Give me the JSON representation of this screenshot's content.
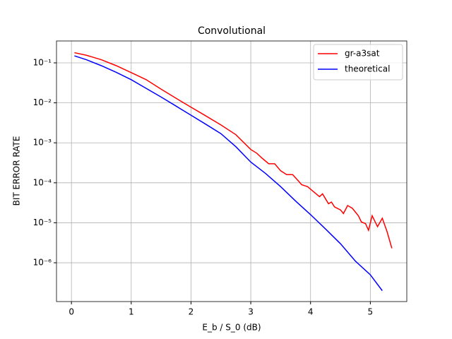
{
  "chart_data": {
    "type": "line",
    "title": "Convolutional",
    "x_label": "E_b / S_0 (dB)",
    "y_label": "BIT ERROR RATE",
    "yscale": "log",
    "grid": true,
    "legend": "upper right",
    "xlim": [
      -0.25,
      5.61
    ],
    "xticks": [
      0,
      1,
      2,
      3,
      4,
      5
    ],
    "ylim": [
      1.07e-07,
      0.353
    ],
    "yticks": [
      {
        "value": 1e-06,
        "label": "10⁻⁶"
      },
      {
        "value": 1e-05,
        "label": "10⁻⁵"
      },
      {
        "value": 0.0001,
        "label": "10⁻⁴"
      },
      {
        "value": 0.001,
        "label": "10⁻³"
      },
      {
        "value": 0.01,
        "label": "10⁻²"
      },
      {
        "value": 0.1,
        "label": "10⁻¹"
      }
    ],
    "series": [
      {
        "name": "gr-a3sat",
        "color": "#ff0000",
        "x": [
          0.05,
          0.25,
          0.5,
          0.75,
          1.0,
          1.25,
          1.5,
          1.75,
          2.0,
          2.25,
          2.5,
          2.75,
          3.0,
          3.1,
          3.2,
          3.3,
          3.4,
          3.5,
          3.6,
          3.7,
          3.8,
          3.85,
          3.95,
          4.05,
          4.15,
          4.2,
          4.3,
          4.35,
          4.4,
          4.5,
          4.55,
          4.62,
          4.7,
          4.8,
          4.85,
          4.92,
          4.97,
          5.03,
          5.12,
          5.2,
          5.28,
          5.36
        ],
        "values": [
          0.18,
          0.155,
          0.12,
          0.085,
          0.057,
          0.038,
          0.022,
          0.013,
          0.0078,
          0.0047,
          0.0028,
          0.0016,
          0.00068,
          0.00055,
          0.0004,
          0.0003,
          0.0003,
          0.0002,
          0.00016,
          0.00016,
          0.00011,
          9e-05,
          8e-05,
          6e-05,
          4.5e-05,
          5.3e-05,
          3e-05,
          3.3e-05,
          2.5e-05,
          2.1e-05,
          1.7e-05,
          2.7e-05,
          2.3e-05,
          1.5e-05,
          1.05e-05,
          9.5e-06,
          6.5e-06,
          1.5e-05,
          8e-06,
          1.3e-05,
          6e-06,
          2.3e-06
        ]
      },
      {
        "name": "theoretical",
        "color": "#0000ff",
        "x": [
          0.05,
          0.25,
          0.5,
          0.75,
          1.0,
          1.25,
          1.5,
          1.75,
          2.0,
          2.25,
          2.5,
          2.75,
          3.0,
          3.25,
          3.5,
          3.75,
          4.0,
          4.25,
          4.5,
          4.75,
          5.0,
          5.2
        ],
        "values": [
          0.15,
          0.12,
          0.085,
          0.058,
          0.038,
          0.023,
          0.014,
          0.0083,
          0.0049,
          0.0029,
          0.0017,
          0.0008,
          0.00033,
          0.00017,
          8e-05,
          3.5e-05,
          1.6e-05,
          7e-06,
          3e-06,
          1.1e-06,
          5e-07,
          2e-07
        ]
      }
    ]
  }
}
